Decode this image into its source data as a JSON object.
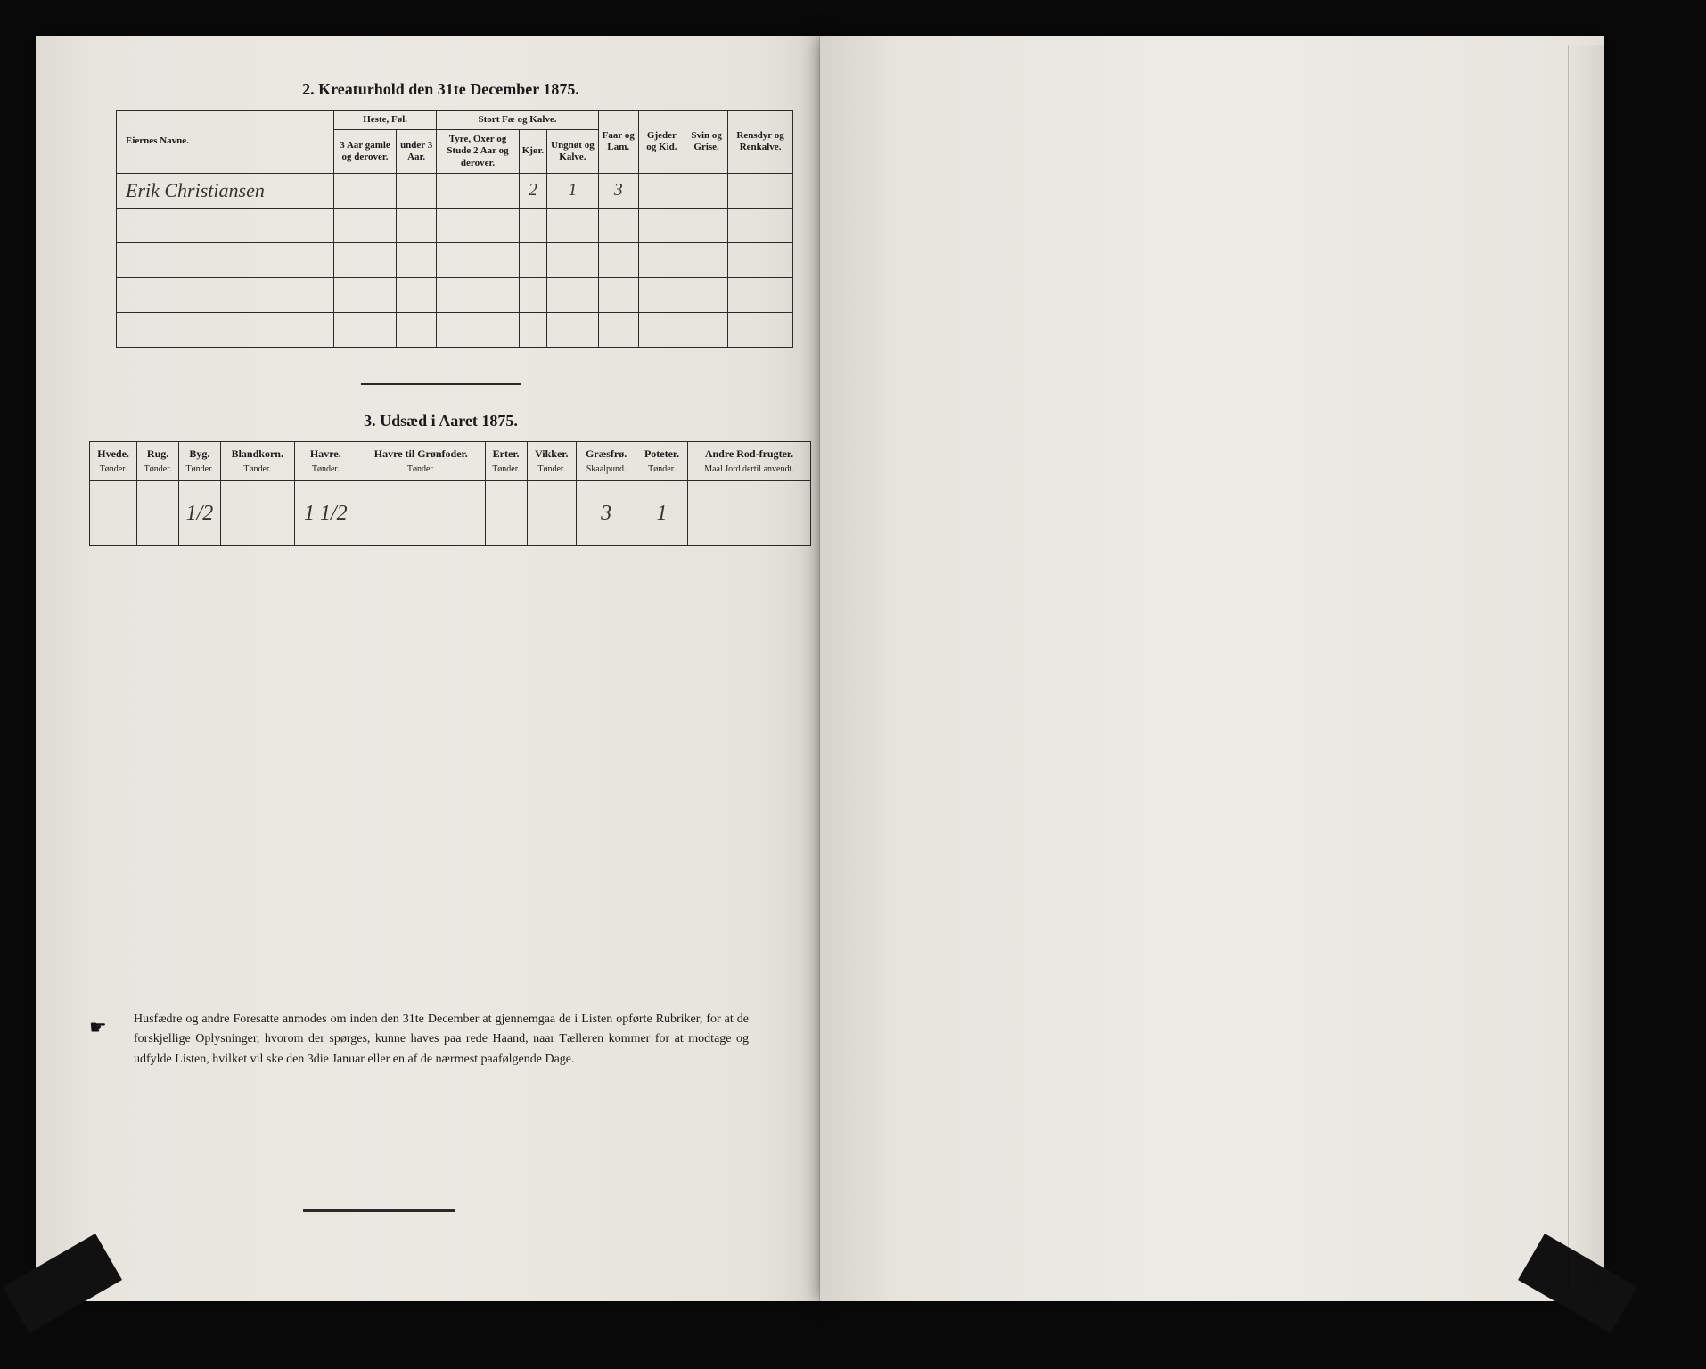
{
  "page": {
    "background_color": "#0a0a0a",
    "paper_color": "#e8e5df"
  },
  "section2": {
    "title": "2.  Kreaturhold den 31te December 1875.",
    "header": {
      "name_col": "Eiernes Navne.",
      "group_heste": "Heste, Føl.",
      "group_stortfae": "Stort Fæ og Kalve.",
      "heste_a": "3 Aar gamle og derover.",
      "heste_b": "under 3 Aar.",
      "stort_a": "Tyre, Oxer og Stude 2 Aar og derover.",
      "stort_b": "Kjør.",
      "stort_c": "Ungnøt og Kalve.",
      "faar": "Faar og Lam.",
      "gjeder": "Gjeder og Kid.",
      "svin": "Svin og Grise.",
      "rensdyr": "Rensdyr og Renkalve."
    },
    "rows": [
      {
        "name": "Erik Christiansen",
        "heste_a": "",
        "heste_b": "",
        "stort_a": "",
        "stort_b": "2",
        "stort_c": "1",
        "faar": "3",
        "gjeder": "",
        "svin": "",
        "rensdyr": ""
      },
      {
        "name": "",
        "heste_a": "",
        "heste_b": "",
        "stort_a": "",
        "stort_b": "",
        "stort_c": "",
        "faar": "",
        "gjeder": "",
        "svin": "",
        "rensdyr": ""
      },
      {
        "name": "",
        "heste_a": "",
        "heste_b": "",
        "stort_a": "",
        "stort_b": "",
        "stort_c": "",
        "faar": "",
        "gjeder": "",
        "svin": "",
        "rensdyr": ""
      },
      {
        "name": "",
        "heste_a": "",
        "heste_b": "",
        "stort_a": "",
        "stort_b": "",
        "stort_c": "",
        "faar": "",
        "gjeder": "",
        "svin": "",
        "rensdyr": ""
      },
      {
        "name": "",
        "heste_a": "",
        "heste_b": "",
        "stort_a": "",
        "stort_b": "",
        "stort_c": "",
        "faar": "",
        "gjeder": "",
        "svin": "",
        "rensdyr": ""
      }
    ]
  },
  "section3": {
    "title": "3.  Udsæd i Aaret 1875.",
    "columns": [
      {
        "label": "Hvede.",
        "sub": "Tønder."
      },
      {
        "label": "Rug.",
        "sub": "Tønder."
      },
      {
        "label": "Byg.",
        "sub": "Tønder."
      },
      {
        "label": "Blandkorn.",
        "sub": "Tønder."
      },
      {
        "label": "Havre.",
        "sub": "Tønder."
      },
      {
        "label": "Havre til Grønfoder.",
        "sub": "Tønder."
      },
      {
        "label": "Erter.",
        "sub": "Tønder."
      },
      {
        "label": "Vikker.",
        "sub": "Tønder."
      },
      {
        "label": "Græsfrø.",
        "sub": "Skaalpund."
      },
      {
        "label": "Poteter.",
        "sub": "Tønder."
      },
      {
        "label": "Andre Rod-frugter.",
        "sub": "Maal Jord dertil anvendt."
      }
    ],
    "row": [
      "",
      "",
      "1/2",
      "",
      "1 1/2",
      "",
      "",
      "",
      "3",
      "1",
      ""
    ]
  },
  "footer": {
    "text": "Husfædre og andre Foresatte anmodes om inden den 31te December at gjennemgaa de i Listen opførte Rubriker, for at de forskjellige Oplysninger, hvorom der spørges, kunne haves paa rede Haand, naar Tælleren kommer for at modtage og udfylde Listen, hvilket vil ske den 3die Januar eller en af de nærmest paafølgende Dage."
  }
}
